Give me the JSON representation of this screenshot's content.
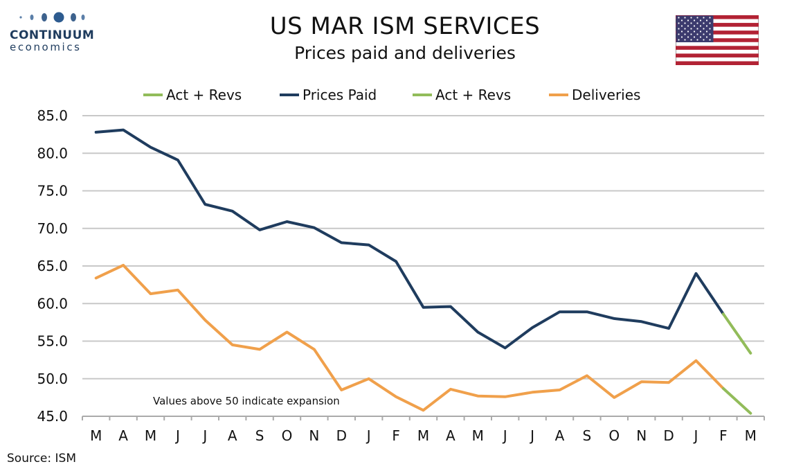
{
  "header": {
    "title": "US MAR ISM SERVICES",
    "subtitle": "Prices paid and deliveries"
  },
  "logo": {
    "name": "CONTINUUM",
    "sub": "economics"
  },
  "source": "Source: ISM",
  "colors": {
    "prices_paid": "#1f3c5e",
    "deliveries": "#f0a04b",
    "act_revs": "#92bc5a",
    "grid": "#c8c8c8"
  },
  "chart_data": {
    "type": "line",
    "title": "US MAR ISM SERVICES",
    "subtitle": "Prices paid and deliveries",
    "categories": [
      "M",
      "A",
      "M",
      "J",
      "J",
      "A",
      "S",
      "O",
      "N",
      "D",
      "J",
      "F",
      "M",
      "A",
      "M",
      "J",
      "J",
      "A",
      "S",
      "O",
      "N",
      "D",
      "J",
      "F",
      "M"
    ],
    "ylim": [
      45.0,
      85.0
    ],
    "yticks": [
      "45.0",
      "50.0",
      "55.0",
      "60.0",
      "65.0",
      "70.0",
      "75.0",
      "80.0",
      "85.0"
    ],
    "grid": true,
    "legend_position": "top",
    "annotation": "Values above 50 indicate expansion",
    "series": [
      {
        "name": "Act + Revs",
        "color": "#92bc5a",
        "values": [
          null,
          null,
          null,
          null,
          null,
          null,
          null,
          null,
          null,
          null,
          null,
          null,
          null,
          null,
          null,
          null,
          null,
          null,
          null,
          null,
          null,
          null,
          null,
          58.6,
          53.4
        ]
      },
      {
        "name": "Prices Paid",
        "color": "#1f3c5e",
        "values": [
          82.8,
          83.1,
          80.8,
          79.1,
          73.2,
          72.3,
          69.8,
          70.9,
          70.1,
          68.1,
          67.8,
          65.6,
          59.5,
          59.6,
          56.2,
          54.1,
          56.8,
          58.9,
          58.9,
          58.0,
          57.6,
          56.7,
          64.0,
          58.6,
          null
        ]
      },
      {
        "name": "Act + Revs",
        "color": "#92bc5a",
        "values": [
          null,
          null,
          null,
          null,
          null,
          null,
          null,
          null,
          null,
          null,
          null,
          null,
          null,
          null,
          null,
          null,
          null,
          null,
          null,
          null,
          null,
          null,
          null,
          48.7,
          45.4
        ]
      },
      {
        "name": "Deliveries",
        "color": "#f0a04b",
        "values": [
          63.4,
          65.1,
          61.3,
          61.8,
          57.8,
          54.5,
          53.9,
          56.2,
          53.9,
          48.5,
          50.0,
          47.6,
          45.8,
          48.6,
          47.7,
          47.6,
          48.2,
          48.5,
          50.4,
          47.5,
          49.6,
          49.5,
          52.4,
          48.7,
          null
        ]
      }
    ]
  }
}
